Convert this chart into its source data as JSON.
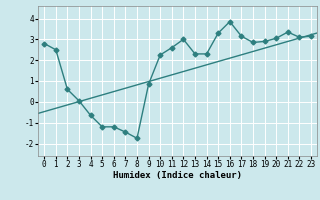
{
  "xlabel": "Humidex (Indice chaleur)",
  "background_color": "#cce8ec",
  "line_color": "#2e7f7f",
  "grid_color": "#ffffff",
  "xlim": [
    -0.5,
    23.5
  ],
  "ylim": [
    -2.6,
    4.6
  ],
  "xticks": [
    0,
    1,
    2,
    3,
    4,
    5,
    6,
    7,
    8,
    9,
    10,
    11,
    12,
    13,
    14,
    15,
    16,
    17,
    18,
    19,
    20,
    21,
    22,
    23
  ],
  "yticks": [
    -2,
    -1,
    0,
    1,
    2,
    3,
    4
  ],
  "line1_x": [
    0,
    1,
    2,
    3,
    4,
    5,
    6,
    7,
    8,
    9,
    10,
    11,
    12,
    13,
    14,
    15,
    16,
    17,
    18,
    19,
    20,
    21,
    22,
    23
  ],
  "line1_y": [
    2.8,
    2.5,
    0.6,
    0.05,
    -0.65,
    -1.2,
    -1.2,
    -1.45,
    -1.75,
    0.85,
    2.25,
    2.6,
    3.0,
    2.3,
    2.3,
    3.3,
    3.85,
    3.15,
    2.85,
    2.9,
    3.05,
    3.35,
    3.1,
    3.15
  ],
  "marker": "D",
  "marker_size": 2.5,
  "linewidth": 1.0,
  "tick_fontsize": 5.5,
  "label_fontsize": 6.5
}
